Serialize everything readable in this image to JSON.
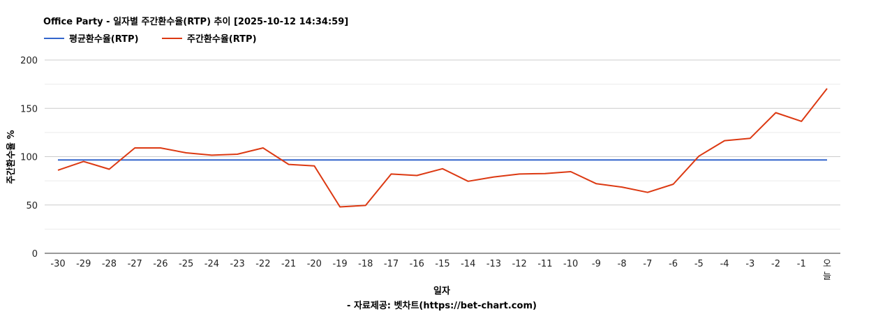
{
  "chart_data": {
    "type": "line",
    "title": "Office Party - 일자별 주간환수율(RTP) 추이 [2025-10-12 14:34:59]",
    "xlabel": "일자",
    "ylabel": "주간환수율 %",
    "source": "- 자료제공: 벳차트(https://bet-chart.com)",
    "categories": [
      "-30",
      "-29",
      "-28",
      "-27",
      "-26",
      "-25",
      "-24",
      "-23",
      "-22",
      "-21",
      "-20",
      "-19",
      "-18",
      "-17",
      "-16",
      "-15",
      "-14",
      "-13",
      "-12",
      "-11",
      "-10",
      "-9",
      "-8",
      "-7",
      "-6",
      "-5",
      "-4",
      "-3",
      "-2",
      "-1",
      "오늘"
    ],
    "yticks": [
      0,
      50,
      100,
      150,
      200
    ],
    "ylim": [
      0,
      200
    ],
    "grid": true,
    "legend_position": "top-left",
    "series": [
      {
        "name": "평균환수율(RTP)",
        "color": "#3366cc",
        "values": [
          96.5,
          96.5,
          96.5,
          96.5,
          96.5,
          96.5,
          96.5,
          96.5,
          96.5,
          96.5,
          96.5,
          96.5,
          96.5,
          96.5,
          96.5,
          96.5,
          96.5,
          96.5,
          96.5,
          96.5,
          96.5,
          96.5,
          96.5,
          96.5,
          96.5,
          96.5,
          96.5,
          96.5,
          96.5,
          96.5,
          96.5
        ]
      },
      {
        "name": "주간환수율(RTP)",
        "color": "#dc3912",
        "values": [
          86,
          95,
          87,
          109,
          109,
          104,
          101.5,
          102.5,
          109,
          92,
          90.5,
          48,
          49.5,
          82,
          80.5,
          87.5,
          74.5,
          79,
          82,
          82.5,
          84.5,
          72,
          68.5,
          63,
          71.5,
          100.5,
          116.5,
          119,
          145.5,
          136.5,
          170.5
        ]
      }
    ]
  }
}
